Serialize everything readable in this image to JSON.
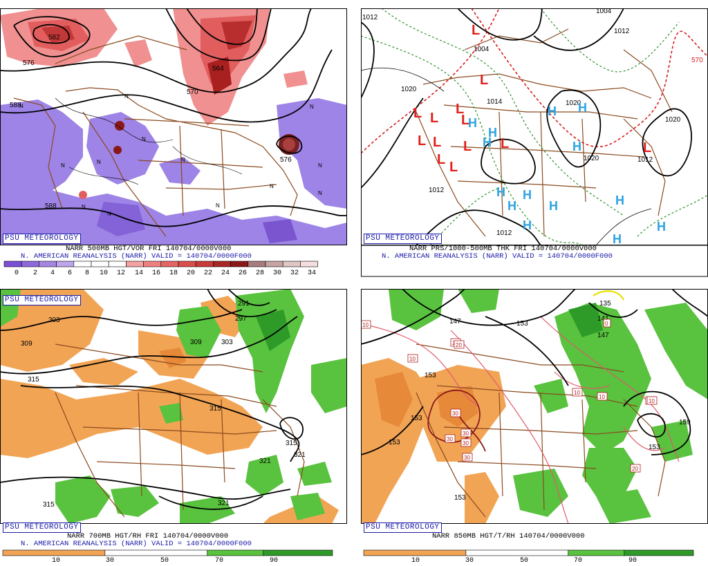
{
  "badge": "PSU METEOROLOGY",
  "panels": {
    "p500": {
      "caption1": "NARR 500MB HGT/VOR FRI 140704/0000V000",
      "caption2": "N. AMERICAN REANALYSIS (NARR) VALID = 140704/0000F000",
      "colorbar_labels": [
        "0",
        "2",
        "4",
        "6",
        "8",
        "10",
        "12",
        "14",
        "16",
        "18",
        "20",
        "22",
        "24",
        "26",
        "28",
        "30",
        "32",
        "34"
      ],
      "colorbar_colors": [
        "#7b4fd6",
        "#8e68dd",
        "#a585e4",
        "#bda6ec",
        "#ffffff",
        "#ffffff",
        "#ffffff",
        "#f5a2a2",
        "#ee8080",
        "#e56666",
        "#db4c4c",
        "#c93a3a",
        "#a82626",
        "#8a1818",
        "#a87c7c",
        "#c7a4a4",
        "#e0c6c6",
        "#f5dede"
      ],
      "contour_labels": [
        "582",
        "576",
        "588",
        "564",
        "570",
        "576",
        "588",
        "588"
      ],
      "center_marks": [
        "N",
        "N",
        "N",
        "N",
        "N",
        "N",
        "N",
        "N",
        "N",
        "N",
        "N",
        "N",
        "N"
      ]
    },
    "pmsl": {
      "caption1": "NARR PRS/1000-500MB THK FRI 140704/0000V000",
      "caption2": "N. AMERICAN REANALYSIS (NARR) VALID = 140704/0000F000",
      "isobar_labels": [
        "1012",
        "1004",
        "1004",
        "1012",
        "1020",
        "1014",
        "1020",
        "1020",
        "1020",
        "1012",
        "1012",
        "1012",
        "570"
      ],
      "low_symbol": "L",
      "high_symbol": "H"
    },
    "p700": {
      "caption1": "NARR 700MB HGT/RH FRI 140704/0000V000",
      "caption2": "N. AMERICAN REANALYSIS (NARR) VALID = 140704/0000F000",
      "colorbar_labels": [
        "10",
        "30",
        "50",
        "70",
        "90"
      ],
      "contour_labels": [
        "303",
        "309",
        "315",
        "291",
        "297",
        "309",
        "303",
        "315",
        "315",
        "321",
        "321",
        "315",
        "321"
      ]
    },
    "p850": {
      "caption1": "NARR 850MB HGT/T/RH 140704/0000V000",
      "colorbar_labels": [
        "10",
        "30",
        "50",
        "70",
        "90"
      ],
      "contour_labels": [
        "147",
        "153",
        "153",
        "153",
        "147",
        "153",
        "153",
        "159",
        "153",
        "141",
        "135"
      ],
      "temp_labels": [
        "10",
        "20",
        "10",
        "30",
        "30",
        "30",
        "30",
        "30",
        "10",
        "10",
        "20",
        "20",
        "20",
        "0",
        "10"
      ]
    }
  },
  "colors": {
    "dry": "#f2a455",
    "moist": "#59c23f",
    "moist_dark": "#2e9a28",
    "border": "#8a4a1e",
    "contour": "#000000",
    "low": "#e0201c",
    "high": "#2da3e3",
    "thickness_warm": "#d91c1c",
    "thickness_cool": "#2a8f2a",
    "accent": "#1a1aa8"
  }
}
